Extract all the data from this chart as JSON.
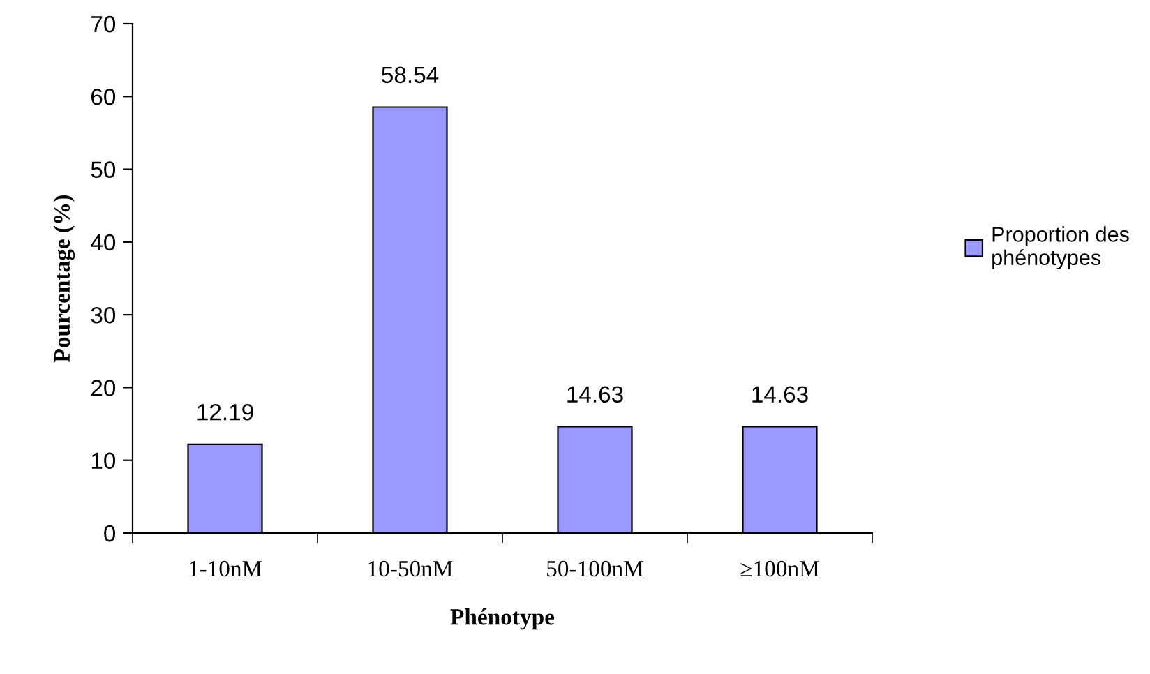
{
  "chart_data": {
    "type": "bar",
    "xlabel": "Phénotype",
    "ylabel": "Pourcentage (%)",
    "categories": [
      "1-10nM",
      "10-50nM",
      "50-100nM",
      "≥100nM"
    ],
    "series": [
      {
        "name": "Proportion des\nphénotypes",
        "color": "#9999ff",
        "values": [
          12.19,
          58.54,
          14.63,
          14.63
        ]
      }
    ],
    "ylim": [
      0,
      70
    ],
    "yticks": [
      0,
      10,
      20,
      30,
      40,
      50,
      60,
      70
    ],
    "data_labels": true,
    "grid": false,
    "legend": "right"
  }
}
